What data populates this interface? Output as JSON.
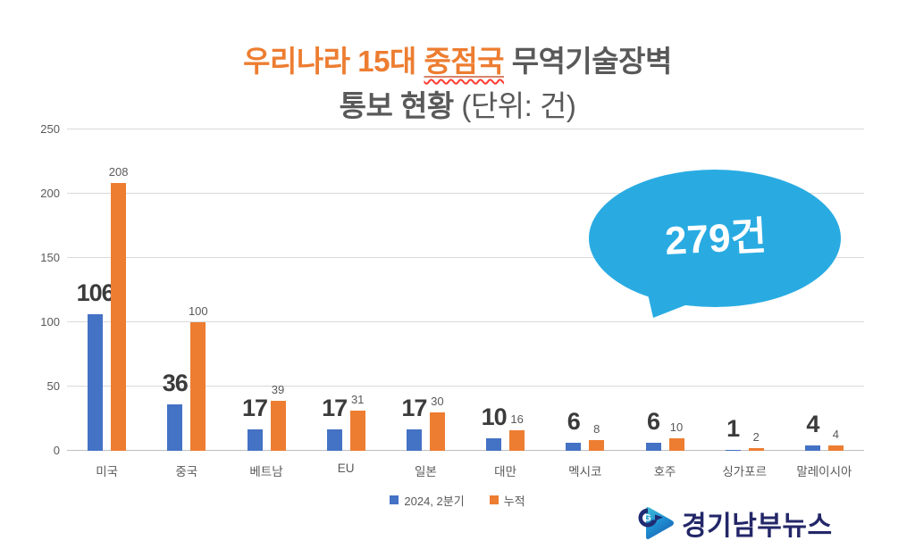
{
  "title": {
    "line1_orange_prefix": "우리나라 15대 ",
    "line1_highlight": "중점국",
    "line1_dark": " 무역기술장벽",
    "line2_bold": "통보 현황",
    "line2_normal": " (단위: 건)",
    "orange_color": "#ED7D31",
    "dark_color": "#595959"
  },
  "chart_data": {
    "type": "bar",
    "categories": [
      "미국",
      "중국",
      "베트남",
      "EU",
      "일본",
      "대만",
      "멕시코",
      "호주",
      "싱가포르",
      "말레이시아"
    ],
    "series": [
      {
        "name": "2024, 2분기",
        "color": "#4472C4",
        "values": [
          106,
          36,
          17,
          17,
          17,
          10,
          6,
          6,
          1,
          4
        ]
      },
      {
        "name": "누적",
        "color": "#ED7D31",
        "values": [
          208,
          100,
          39,
          31,
          30,
          16,
          8,
          10,
          2,
          4
        ]
      }
    ],
    "ylim": [
      0,
      250
    ],
    "yticks": [
      0,
      50,
      100,
      150,
      200,
      250
    ],
    "grid": true,
    "legend_position": "bottom",
    "xlabel": "",
    "ylabel": ""
  },
  "annotation": {
    "text": "279건",
    "bubble_color": "#29ABE2",
    "text_color": "#FFFFFF"
  },
  "logo": {
    "text": "경기남부뉴스",
    "color": "#232768"
  }
}
